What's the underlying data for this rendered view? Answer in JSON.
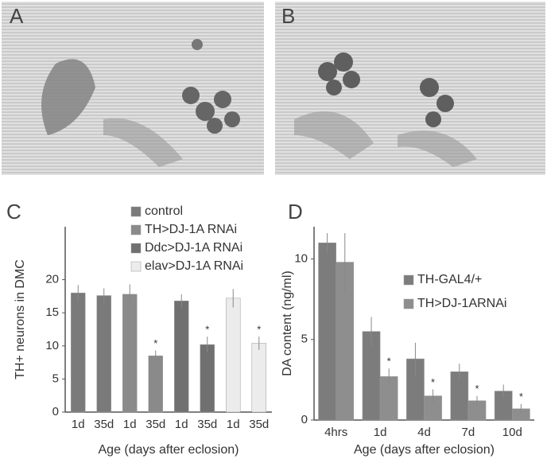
{
  "images": [
    {
      "label": "A"
    },
    {
      "label": "B"
    }
  ],
  "chart_data": [
    {
      "type": "bar",
      "panel_label": "C",
      "y_label": "TH+ neurons in DMC",
      "x_label": "Age (days after eclosion)",
      "categories": [
        "1d",
        "35d",
        "1d",
        "35d",
        "1d",
        "35d",
        "1d",
        "35d"
      ],
      "ylim": [
        0,
        28
      ],
      "yticks": [
        0,
        5,
        10,
        15,
        20
      ],
      "legend": "top-right",
      "series": [
        {
          "name": "control",
          "color": "#7a7a7a",
          "values": [
            18,
            17.6,
            null,
            null,
            null,
            null,
            null,
            null
          ],
          "errors": [
            1.2,
            1.1,
            null,
            null,
            null,
            null,
            null,
            null
          ]
        },
        {
          "name": "TH>DJ-1A RNAi",
          "color": "#8a8a8a",
          "values": [
            null,
            null,
            17.8,
            8.5,
            null,
            null,
            null,
            null
          ],
          "errors": [
            null,
            null,
            1.5,
            0.8,
            null,
            null,
            null,
            null
          ],
          "markers": [
            null,
            null,
            null,
            "*",
            null,
            null,
            null,
            null
          ]
        },
        {
          "name": "Ddc>DJ-1A RNAi",
          "color": "#707070",
          "values": [
            null,
            null,
            null,
            null,
            16.8,
            10.2,
            null,
            null
          ],
          "errors": [
            null,
            null,
            null,
            null,
            1.0,
            1.2,
            null,
            null
          ],
          "markers": [
            null,
            null,
            null,
            null,
            null,
            "*",
            null,
            null
          ]
        },
        {
          "name": "elav>DJ-1A RNAi",
          "color": "#ececec",
          "values": [
            null,
            null,
            null,
            null,
            null,
            null,
            17.2,
            10.4
          ],
          "errors": [
            null,
            null,
            null,
            null,
            null,
            null,
            1.4,
            1.0
          ],
          "markers": [
            null,
            null,
            null,
            null,
            null,
            null,
            null,
            "*"
          ]
        }
      ]
    },
    {
      "type": "bar",
      "panel_label": "D",
      "y_label": "DA content (ng/ml)",
      "x_label": "Age (days after eclosion)",
      "categories": [
        "4hrs",
        "1d",
        "4d",
        "7d",
        "10d"
      ],
      "ylim": [
        0,
        12
      ],
      "yticks": [
        0,
        5,
        10
      ],
      "legend": "right",
      "series": [
        {
          "name": "TH-GAL4/+",
          "color": "#7c7c7c",
          "values": [
            11,
            5.5,
            3.8,
            3.0,
            1.8
          ],
          "errors": [
            0.6,
            0.9,
            1.0,
            0.5,
            0.4
          ]
        },
        {
          "name": "TH>DJ-1ARNAi",
          "color": "#8e8e8e",
          "values": [
            9.8,
            2.7,
            1.5,
            1.2,
            0.7
          ],
          "errors": [
            1.8,
            0.5,
            0.4,
            0.3,
            0.3
          ],
          "markers": [
            null,
            "*",
            "*",
            "*",
            "*"
          ]
        }
      ]
    }
  ]
}
